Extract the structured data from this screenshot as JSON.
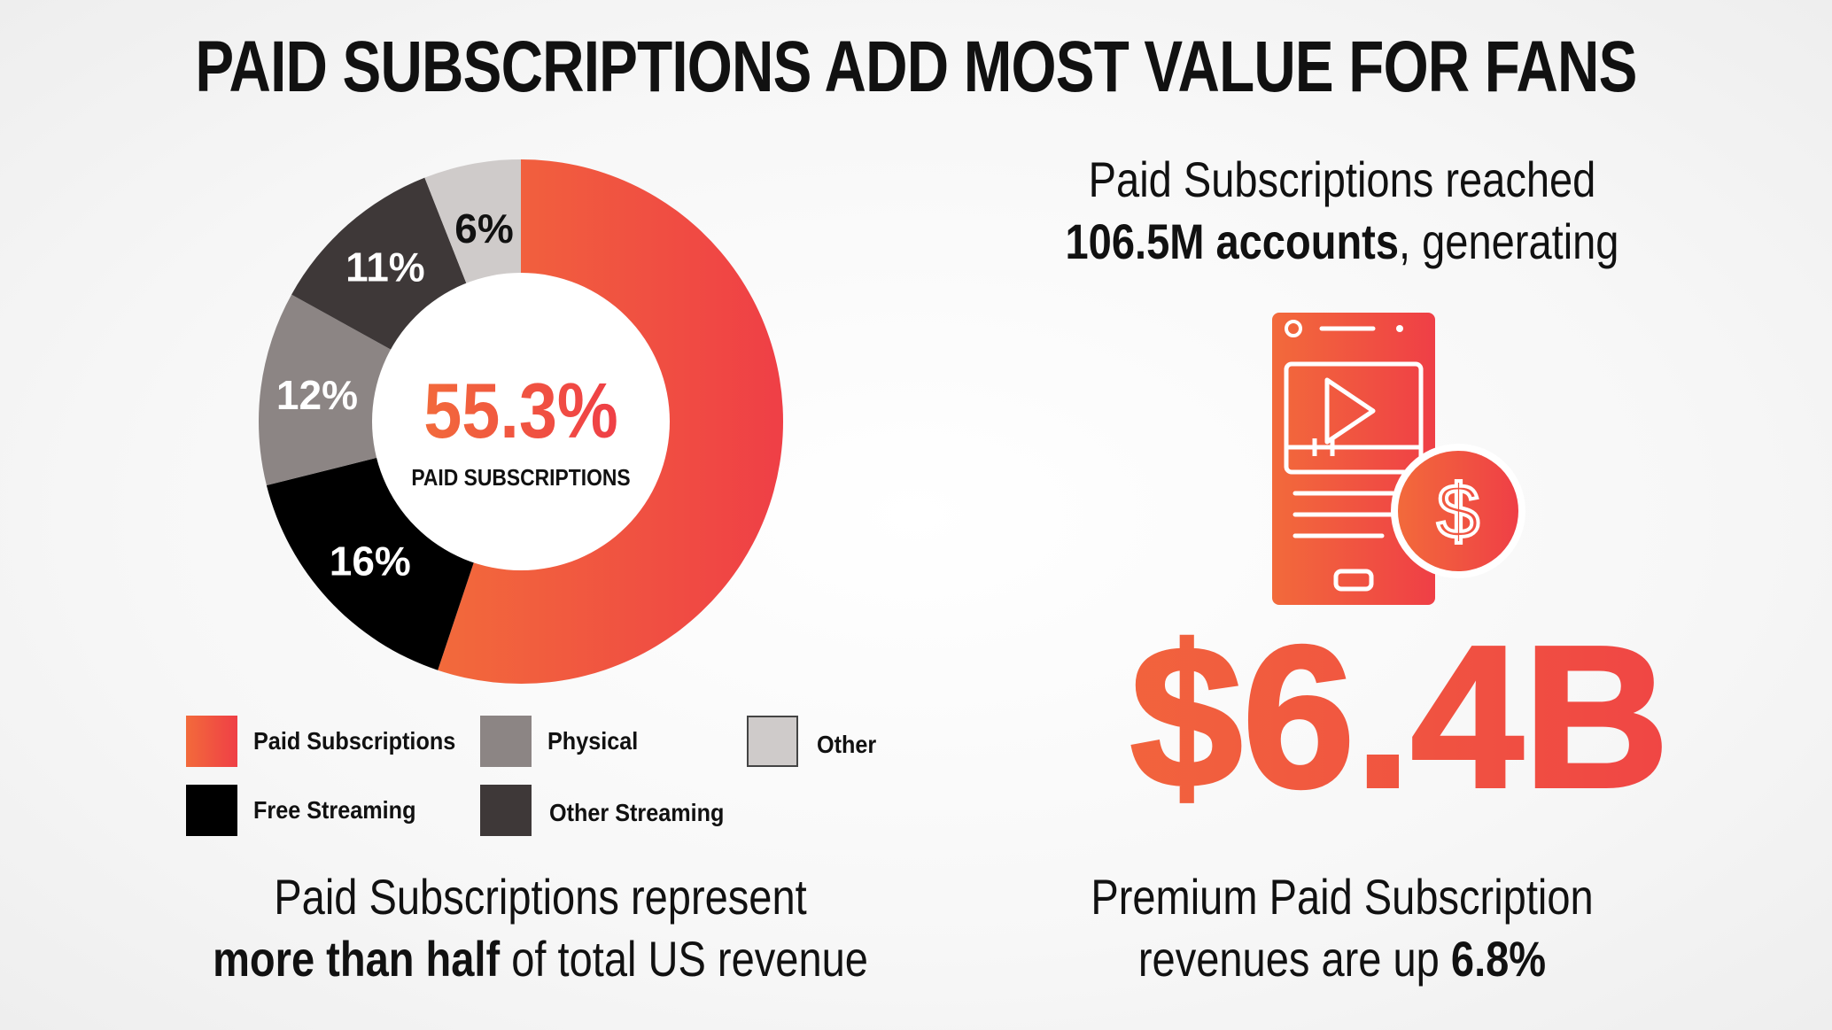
{
  "title": "PAID SUBSCRIPTIONS ADD MOST VALUE FOR FANS",
  "chart_data": {
    "type": "pie",
    "categories": [
      "Paid Subscriptions",
      "Free Streaming",
      "Physical",
      "Other Streaming",
      "Other"
    ],
    "values": [
      55.3,
      16,
      12,
      11,
      6
    ],
    "slice_labels": [
      "",
      "16%",
      "12%",
      "11%",
      "6%"
    ],
    "colors": [
      "#ef4a3f",
      "#000000",
      "#8c8584",
      "#3e3838",
      "#cfcbca"
    ],
    "center_value": "55.3%",
    "center_label": "PAID SUBSCRIPTIONS",
    "legend": [
      {
        "label": "Paid Subscriptions",
        "color": "#ef4a3f"
      },
      {
        "label": "Physical",
        "color": "#8c8584"
      },
      {
        "label": "Other",
        "color": "#cfcbca"
      },
      {
        "label": "Free Streaming",
        "color": "#000000"
      },
      {
        "label": "Other Streaming",
        "color": "#3e3838"
      }
    ]
  },
  "left_caption": {
    "line1": "Paid Subscriptions represent",
    "line2_bold": "more than half",
    "line2_rest": " of total US revenue"
  },
  "right_top": {
    "line1": "Paid Subscriptions reached",
    "line2_bold": "106.5M accounts",
    "line2_rest": ", generating"
  },
  "icon": "phone-video-dollar-icon",
  "big_value": "$6.4B",
  "right_bottom": {
    "line1": "Premium Paid Subscription",
    "line2_rest": "revenues are up ",
    "line2_bold": "6.8%"
  },
  "accent_gradient": [
    "#f26a3b",
    "#ef3f46"
  ]
}
